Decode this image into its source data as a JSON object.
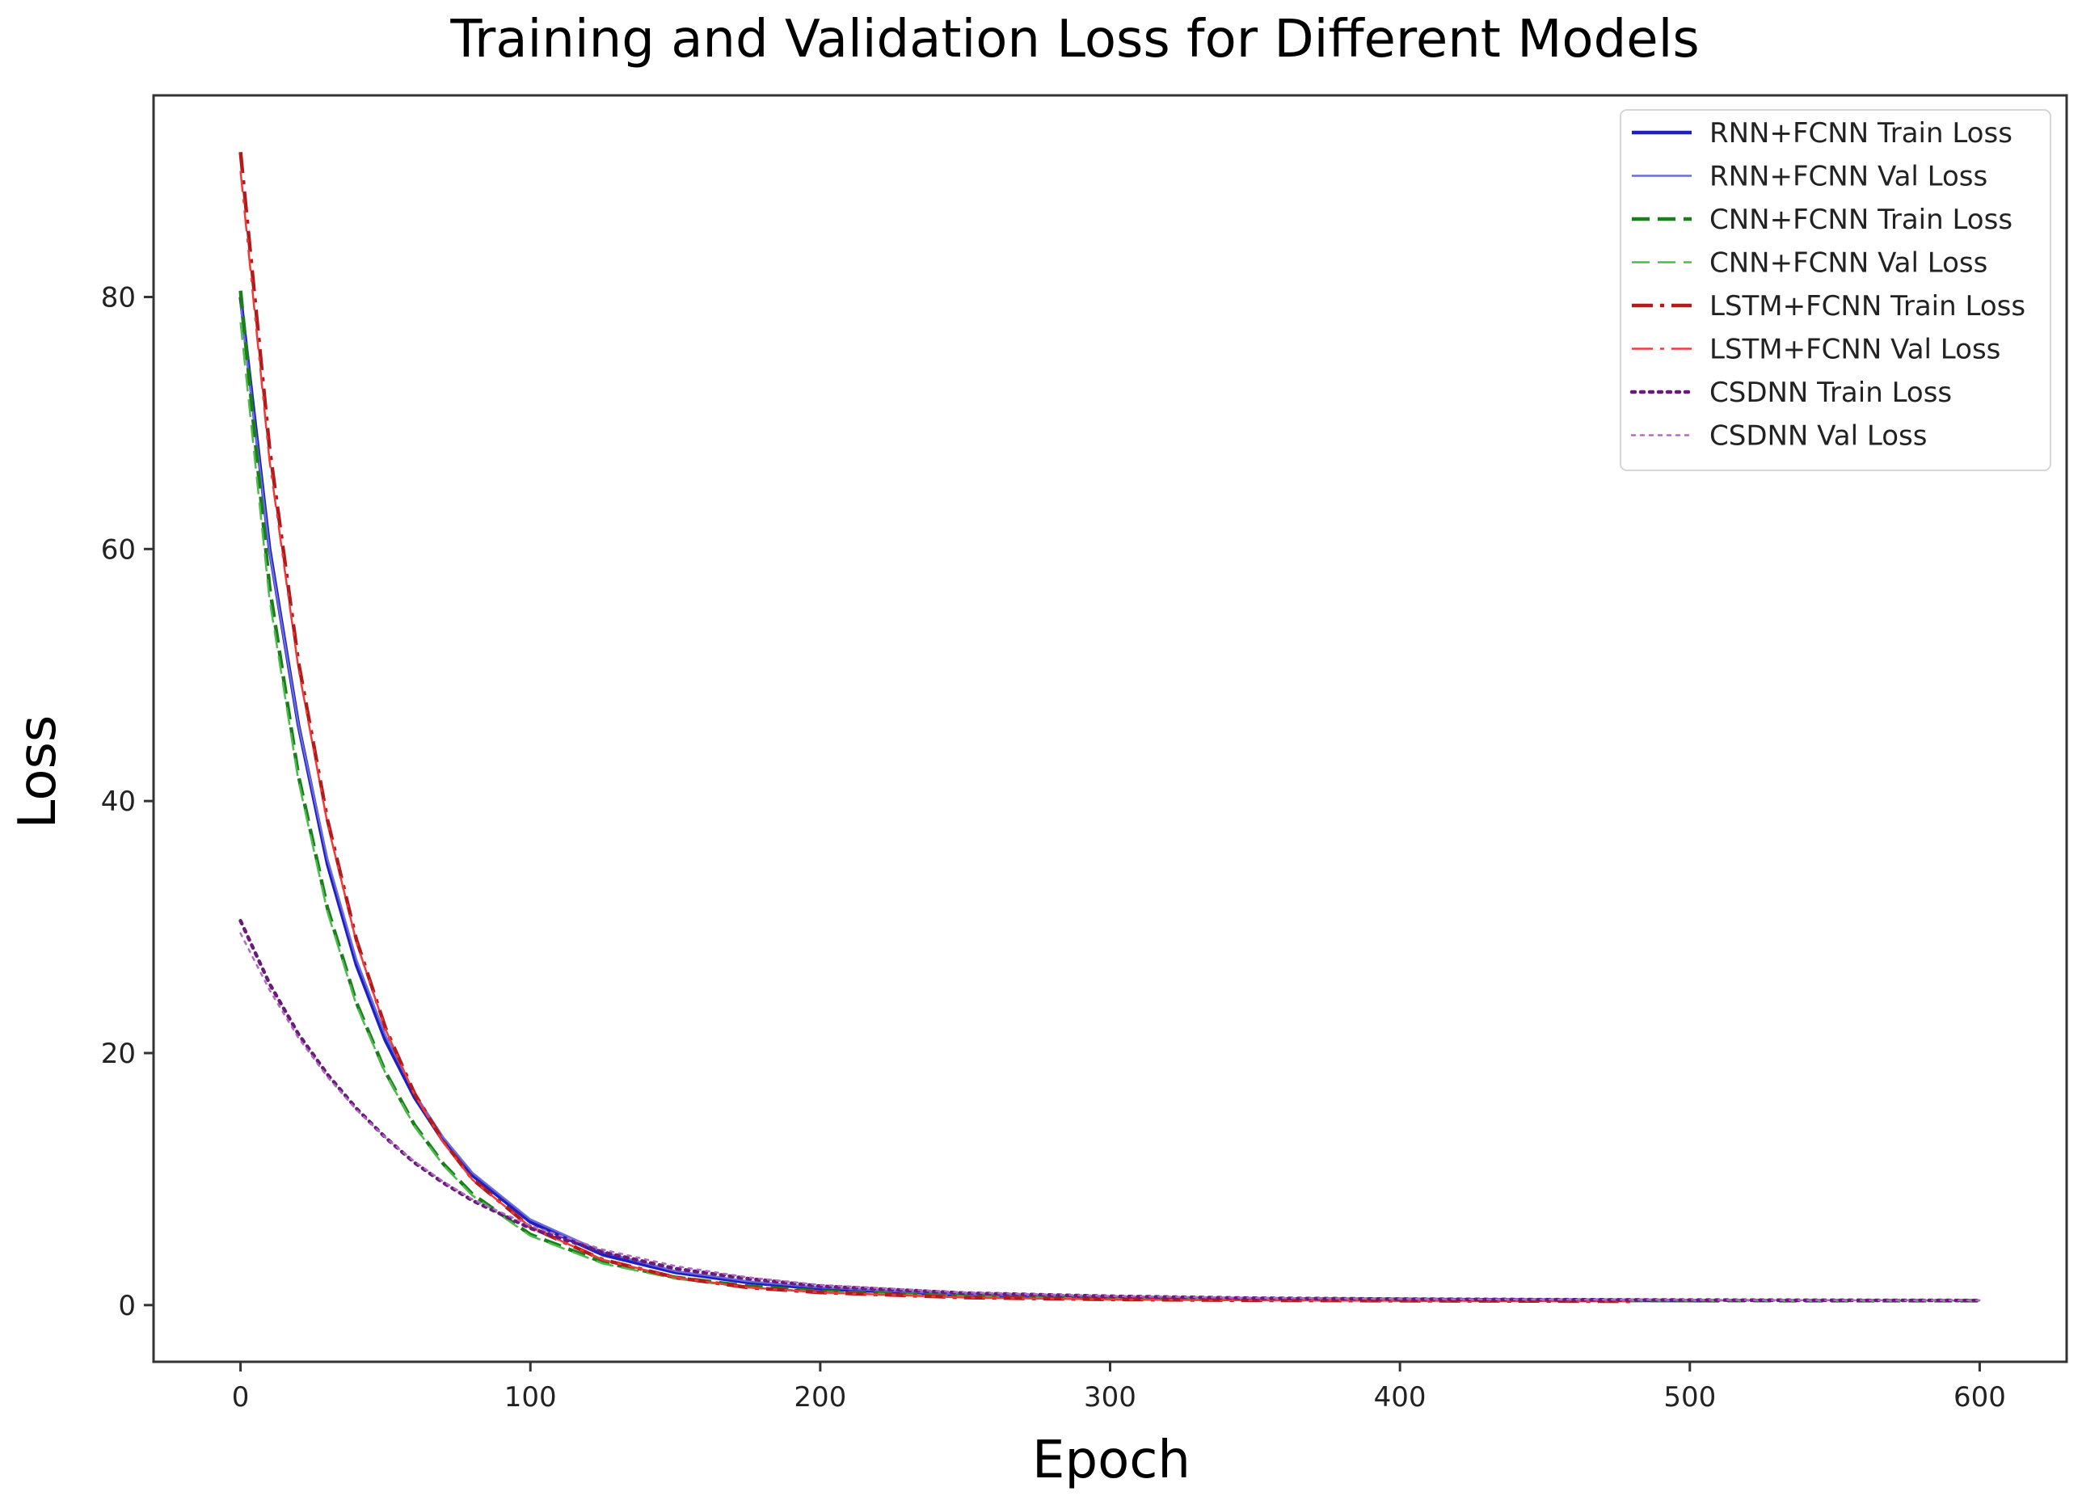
{
  "chart_data": {
    "type": "line",
    "title": "Training and Validation Loss for Different Models",
    "xlabel": "Epoch",
    "ylabel": "Loss",
    "xlim": [
      -30,
      630
    ],
    "ylim": [
      -4.5,
      96
    ],
    "xticks": [
      0,
      100,
      200,
      300,
      400,
      500,
      600
    ],
    "yticks": [
      0,
      20,
      40,
      60,
      80
    ],
    "legend_position": "top-right",
    "grid": false,
    "series": [
      {
        "name": "RNN+FCNN Train Loss",
        "color": "#1f1fbf",
        "style": "solid",
        "width": 4.5,
        "x": [
          0,
          10,
          20,
          30,
          40,
          50,
          60,
          70,
          80,
          100,
          125,
          150,
          175,
          200,
          250,
          300,
          350,
          400,
          450,
          510
        ],
        "y": [
          80,
          60,
          46,
          35,
          27,
          21,
          16.5,
          13,
          10.3,
          6.6,
          4,
          2.6,
          1.8,
          1.3,
          0.8,
          0.6,
          0.5,
          0.45,
          0.4,
          0.35
        ]
      },
      {
        "name": "RNN+FCNN Val Loss",
        "color": "#6a6ae0",
        "style": "solid",
        "width": 2.5,
        "x": [
          0,
          10,
          20,
          30,
          40,
          50,
          60,
          70,
          80,
          100,
          125,
          150,
          175,
          200,
          250,
          300,
          350,
          400,
          450,
          510
        ],
        "y": [
          79.5,
          59.8,
          46,
          35.4,
          27.4,
          21.4,
          16.8,
          13.3,
          10.5,
          6.8,
          4.2,
          2.7,
          1.9,
          1.4,
          0.85,
          0.65,
          0.52,
          0.46,
          0.42,
          0.38
        ]
      },
      {
        "name": "CNN+FCNN Train Loss",
        "color": "#1a7f1a",
        "style": "dashed",
        "width": 4.5,
        "x": [
          0,
          10,
          20,
          30,
          40,
          50,
          60,
          70,
          80,
          100,
          125,
          150,
          175,
          200,
          250,
          300,
          350,
          400,
          450,
          500,
          550,
          600
        ],
        "y": [
          80.5,
          57,
          42,
          31.5,
          24,
          18.5,
          14.3,
          11.2,
          8.8,
          5.6,
          3.4,
          2.2,
          1.5,
          1.1,
          0.7,
          0.5,
          0.45,
          0.4,
          0.38,
          0.36,
          0.35,
          0.35
        ]
      },
      {
        "name": "CNN+FCNN Val Loss",
        "color": "#4cbb4c",
        "style": "dashed",
        "width": 2.5,
        "x": [
          0,
          10,
          20,
          30,
          40,
          50,
          60,
          70,
          80,
          100,
          125,
          150,
          175,
          200,
          250,
          300,
          350,
          400,
          450,
          500,
          550,
          600
        ],
        "y": [
          78,
          56,
          41.6,
          31.2,
          23.8,
          18.4,
          14.2,
          11.1,
          8.7,
          5.5,
          3.3,
          2.1,
          1.4,
          1.05,
          0.68,
          0.5,
          0.44,
          0.4,
          0.38,
          0.36,
          0.35,
          0.35
        ]
      },
      {
        "name": "LSTM+FCNN Train Loss",
        "color": "#b51a1a",
        "style": "dashdot",
        "width": 4.5,
        "x": [
          0,
          10,
          20,
          30,
          40,
          50,
          60,
          70,
          80,
          100,
          125,
          150,
          175,
          200,
          250,
          300,
          350,
          400,
          450,
          480
        ],
        "y": [
          91.5,
          68,
          51,
          38.5,
          29,
          22,
          16.8,
          13,
          10,
          6.2,
          3.6,
          2.2,
          1.4,
          1,
          0.6,
          0.45,
          0.38,
          0.35,
          0.32,
          0.3
        ]
      },
      {
        "name": "LSTM+FCNN Val Loss",
        "color": "#f03a3a",
        "style": "dashdot",
        "width": 2.5,
        "x": [
          0,
          10,
          20,
          30,
          40,
          50,
          60,
          70,
          80,
          100,
          125,
          150,
          175,
          200,
          250,
          300,
          350,
          400,
          450,
          480
        ],
        "y": [
          90,
          67,
          50.5,
          38.2,
          28.8,
          21.9,
          16.7,
          12.9,
          9.95,
          6.2,
          3.6,
          2.2,
          1.4,
          1,
          0.6,
          0.45,
          0.38,
          0.35,
          0.32,
          0.3
        ]
      },
      {
        "name": "CSDNN Train Loss",
        "color": "#6a1a7a",
        "style": "dotted",
        "width": 4.5,
        "x": [
          0,
          10,
          20,
          30,
          40,
          50,
          60,
          70,
          80,
          100,
          125,
          150,
          175,
          200,
          250,
          300,
          350,
          400,
          450,
          500,
          550,
          600
        ],
        "y": [
          30.5,
          25.5,
          21.5,
          18.3,
          15.6,
          13.3,
          11.3,
          9.7,
          8.3,
          6.1,
          4.2,
          2.9,
          2.1,
          1.5,
          0.95,
          0.7,
          0.55,
          0.48,
          0.43,
          0.4,
          0.38,
          0.37
        ]
      },
      {
        "name": "CSDNN Val Loss",
        "color": "#b06ac4",
        "style": "dotted",
        "width": 2.5,
        "x": [
          0,
          10,
          20,
          30,
          40,
          50,
          60,
          70,
          80,
          100,
          125,
          150,
          175,
          200,
          250,
          300,
          350,
          400,
          450,
          500,
          550,
          600
        ],
        "y": [
          29.5,
          25,
          21.2,
          18.1,
          15.5,
          13.3,
          11.4,
          9.8,
          8.4,
          6.3,
          4.4,
          3.1,
          2.2,
          1.6,
          1,
          0.72,
          0.57,
          0.49,
          0.44,
          0.41,
          0.39,
          0.38
        ]
      }
    ]
  }
}
